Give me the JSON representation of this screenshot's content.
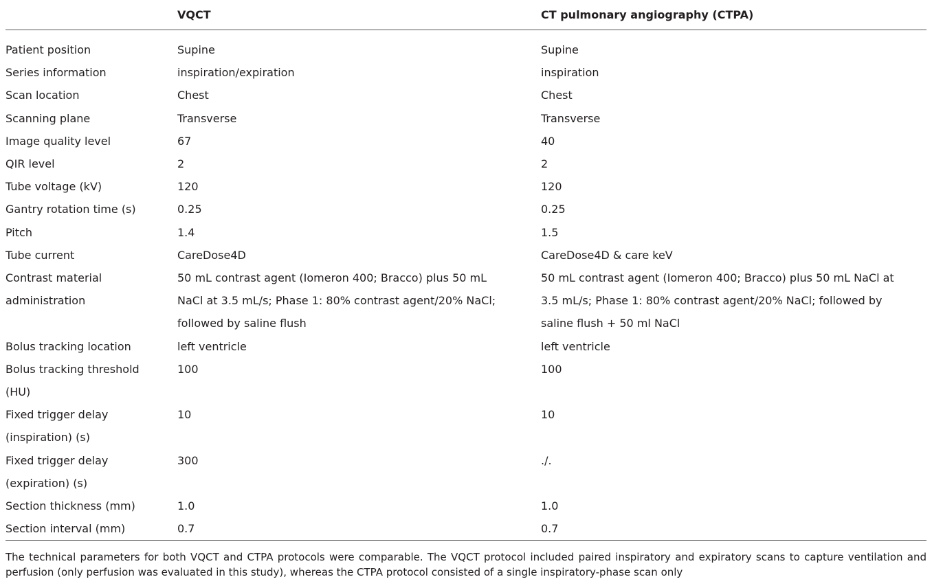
{
  "table": {
    "header": [
      "VQCT",
      "CT pulmonary angiography (CTPA)"
    ],
    "rows": [
      [
        "Patient position",
        "Supine",
        "Supine"
      ],
      [
        "Series information",
        "inspiration/expiration",
        "inspiration"
      ],
      [
        "Scan location",
        "Chest",
        "Chest"
      ],
      [
        "Scanning plane",
        "Transverse",
        "Transverse"
      ],
      [
        "Image quality level",
        "67",
        "40"
      ],
      [
        "QIR level",
        "2",
        "2"
      ],
      [
        "Tube voltage (kV)",
        "120",
        "120"
      ],
      [
        "Gantry rotation time (s)",
        "0.25",
        "0.25"
      ],
      [
        "Pitch",
        "1.4",
        "1.5"
      ],
      [
        "Tube current",
        "CareDose4D",
        "CareDose4D & care keV"
      ],
      [
        [
          "Contrast material",
          "administration"
        ],
        [
          "50 mL contrast agent (Iomeron 400; Bracco) plus 50 mL",
          "NaCl at 3.5 mL/s; Phase 1: 80% contrast agent/20% NaCl;",
          "followed by saline flush"
        ],
        [
          "50 mL contrast agent (Iomeron 400; Bracco) plus 50 mL NaCl at",
          "3.5 mL/s; Phase 1: 80% contrast agent/20% NaCl; followed by",
          "saline flush + 50 ml NaCl"
        ]
      ],
      [
        "Bolus tracking location",
        "left ventricle",
        "left ventricle"
      ],
      [
        [
          "Bolus tracking threshold",
          "(HU)"
        ],
        "100",
        "100"
      ],
      [
        [
          "Fixed trigger delay",
          "(inspiration) (s)"
        ],
        "10",
        "10"
      ],
      [
        [
          "Fixed trigger delay",
          "(expiration) (s)"
        ],
        "300",
        "./."
      ],
      [
        "Section thickness (mm)",
        "1.0",
        "1.0"
      ],
      [
        "Section interval (mm)",
        "0.7",
        "0.7"
      ]
    ]
  },
  "footnote": "The technical parameters for both VQCT and CTPA protocols were comparable. The VQCT protocol included paired inspiratory and expiratory scans to capture ventilation and perfusion (only perfusion was evaluated in this study), whereas the CTPA protocol consisted of a single inspiratory-phase scan only"
}
